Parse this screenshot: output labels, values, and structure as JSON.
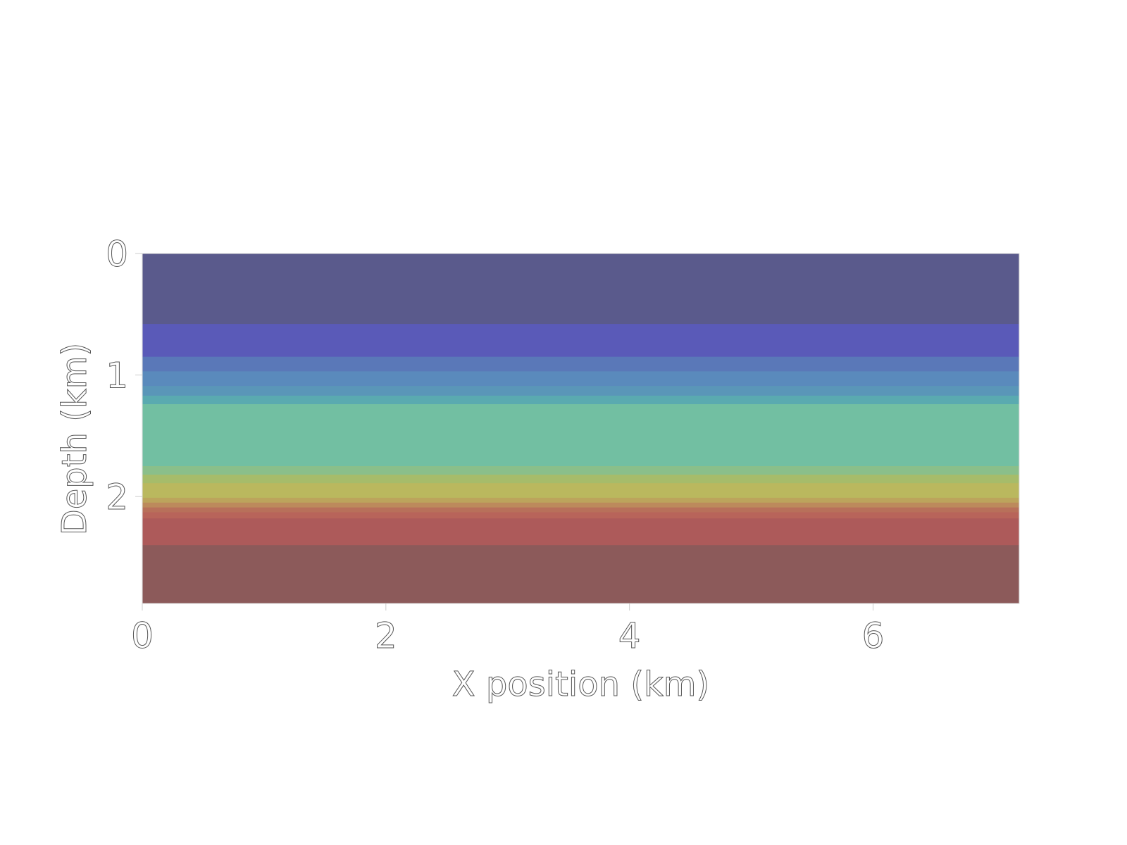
{
  "chart_data": {
    "type": "heatmap",
    "title": "",
    "xlabel": "X position (km)",
    "ylabel": "Depth (km)",
    "xlim": [
      0,
      7.2
    ],
    "ylim": [
      2.88,
      0
    ],
    "xticks": [
      0,
      2,
      4,
      6
    ],
    "xtick_labels": [
      "0",
      "2",
      "4",
      "6"
    ],
    "yticks": [
      0,
      1,
      2
    ],
    "ytick_labels": [
      "0",
      "1",
      "2"
    ],
    "colorbar": false,
    "grid": false,
    "layers": [
      {
        "top": 0.0,
        "bottom": 0.58,
        "color": "#5a5a8c"
      },
      {
        "top": 0.58,
        "bottom": 0.85,
        "color": "#5a5ab8"
      },
      {
        "top": 0.85,
        "bottom": 0.97,
        "color": "#5a78b8"
      },
      {
        "top": 0.97,
        "bottom": 1.09,
        "color": "#5a8abc"
      },
      {
        "top": 1.09,
        "bottom": 1.17,
        "color": "#5a96b8"
      },
      {
        "top": 1.17,
        "bottom": 1.24,
        "color": "#5aaab0"
      },
      {
        "top": 1.24,
        "bottom": 1.75,
        "color": "#72bfa2"
      },
      {
        "top": 1.75,
        "bottom": 1.82,
        "color": "#8abf8a"
      },
      {
        "top": 1.82,
        "bottom": 1.89,
        "color": "#a6bc6a"
      },
      {
        "top": 1.89,
        "bottom": 2.01,
        "color": "#bab85e"
      },
      {
        "top": 2.01,
        "bottom": 2.05,
        "color": "#bca45c"
      },
      {
        "top": 2.05,
        "bottom": 2.09,
        "color": "#bc8a5c"
      },
      {
        "top": 2.09,
        "bottom": 2.13,
        "color": "#b8705a"
      },
      {
        "top": 2.13,
        "bottom": 2.18,
        "color": "#b8645a"
      },
      {
        "top": 2.18,
        "bottom": 2.4,
        "color": "#ad5a5a"
      },
      {
        "top": 2.4,
        "bottom": 2.88,
        "color": "#8c5a5a"
      }
    ]
  }
}
